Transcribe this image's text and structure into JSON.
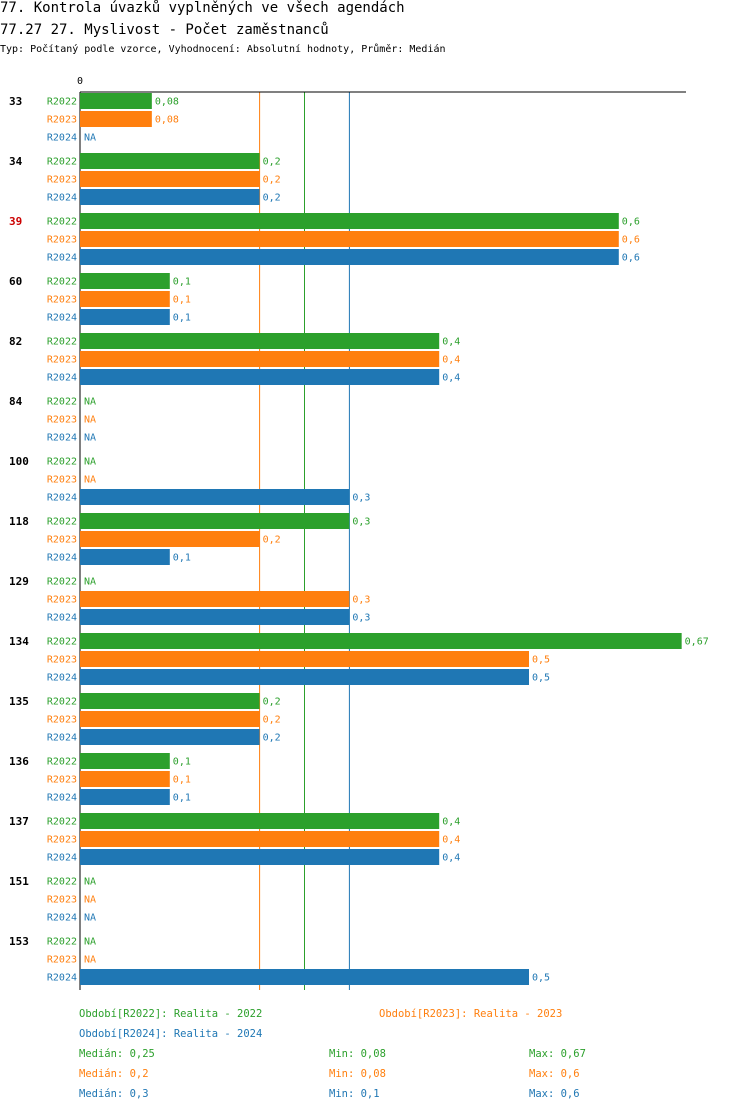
{
  "header": {
    "title_line1": "77. Kontrola úvazků vyplněných ve všech agendách",
    "title_line2": "77.27 27. Myslivost - Počet zaměstnanců",
    "subtitle": "Typ: Počítaný podle vzorce, Vyhodnocení: Absolutní hodnoty, Průměr: Medián"
  },
  "chart_data": {
    "type": "bar",
    "orientation": "horizontal",
    "axis_zero_label": "0",
    "na_label": "NA",
    "categories": [
      "33",
      "34",
      "39",
      "60",
      "82",
      "84",
      "100",
      "118",
      "129",
      "134",
      "135",
      "136",
      "137",
      "151",
      "153"
    ],
    "highlighted_category": "39",
    "series": [
      {
        "name": "R2022",
        "color": "#2ca02c",
        "values": [
          0.08,
          0.2,
          0.6,
          0.1,
          0.4,
          null,
          null,
          0.3,
          null,
          0.67,
          0.2,
          0.1,
          0.4,
          null,
          null
        ],
        "labels": [
          "0,08",
          "0,2",
          "0,6",
          "0,1",
          "0,4",
          "NA",
          "NA",
          "0,3",
          "NA",
          "0,67",
          "0,2",
          "0,1",
          "0,4",
          "NA",
          "NA"
        ]
      },
      {
        "name": "R2023",
        "color": "#ff7f0e",
        "values": [
          0.08,
          0.2,
          0.6,
          0.1,
          0.4,
          null,
          null,
          0.2,
          0.3,
          0.5,
          0.2,
          0.1,
          0.4,
          null,
          null
        ],
        "labels": [
          "0,08",
          "0,2",
          "0,6",
          "0,1",
          "0,4",
          "NA",
          "NA",
          "0,2",
          "0,3",
          "0,5",
          "0,2",
          "0,1",
          "0,4",
          "NA",
          "NA"
        ]
      },
      {
        "name": "R2024",
        "color": "#1f77b4",
        "values": [
          null,
          0.2,
          0.6,
          0.1,
          0.4,
          null,
          0.3,
          0.1,
          0.3,
          0.5,
          0.2,
          0.1,
          0.4,
          null,
          0.5
        ],
        "labels": [
          "NA",
          "0,2",
          "0,6",
          "0,1",
          "0,4",
          "NA",
          "0,3",
          "0,1",
          "0,3",
          "0,5",
          "0,2",
          "0,1",
          "0,4",
          "NA",
          "0,5"
        ]
      }
    ],
    "reference_lines": [
      {
        "series": "R2023",
        "stat": "median",
        "value": 0.2
      },
      {
        "series": "R2022",
        "stat": "median",
        "value": 0.25
      },
      {
        "series": "R2024",
        "stat": "median",
        "value": 0.3
      }
    ],
    "xlim": [
      0,
      0.67
    ]
  },
  "legend": {
    "r2022": {
      "text": "Období[R2022]: Realita - 2022",
      "color": "#2ca02c"
    },
    "r2023": {
      "text": "Období[R2023]: Realita - 2023",
      "color": "#ff7f0e"
    },
    "r2024": {
      "text": "Období[R2024]: Realita - 2024",
      "color": "#1f77b4"
    }
  },
  "stats": {
    "r2022": {
      "median": "Medián: 0,25",
      "min": "Min: 0,08",
      "max": "Max: 0,67",
      "color": "#2ca02c"
    },
    "r2023": {
      "median": "Medián: 0,2",
      "min": "Min: 0,08",
      "max": "Max: 0,6",
      "color": "#ff7f0e"
    },
    "r2024": {
      "median": "Medián: 0,3",
      "min": "Min: 0,1",
      "max": "Max: 0,6",
      "color": "#1f77b4"
    }
  }
}
